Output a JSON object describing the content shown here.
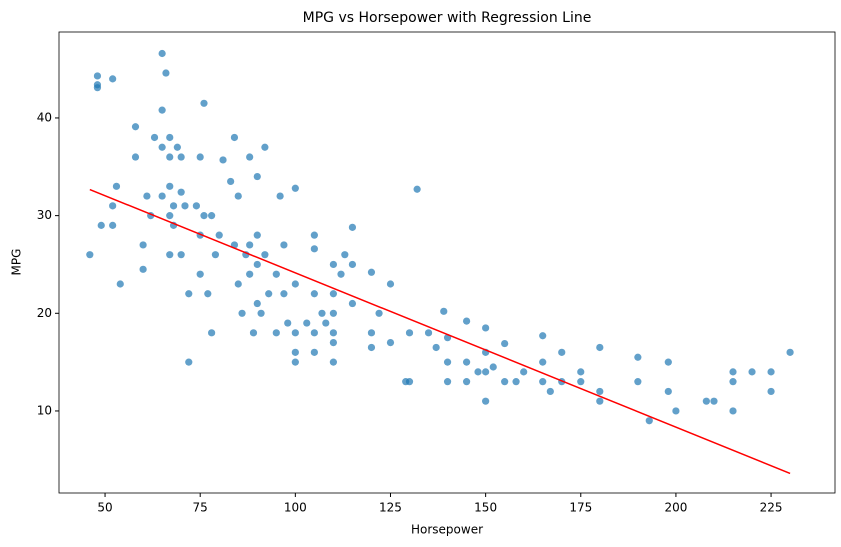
{
  "chart_data": {
    "type": "scatter",
    "title": "MPG vs Horsepower with Regression Line",
    "x_label": "Horsepower",
    "y_label": "MPG",
    "xlim": [
      37.9,
      241.8
    ],
    "ylim": [
      1.6,
      48.8
    ],
    "xticks": [
      50,
      75,
      100,
      125,
      150,
      175,
      200,
      225
    ],
    "yticks": [
      10,
      20,
      30,
      40
    ],
    "grid": false,
    "series": [
      {
        "type": "scatter",
        "color": "#1f77b4",
        "x": [
          46,
          48,
          48,
          48,
          49,
          52,
          52,
          52,
          53,
          54,
          58,
          58,
          60,
          60,
          61,
          62,
          63,
          65,
          65,
          65,
          65,
          66,
          67,
          67,
          67,
          67,
          67,
          68,
          68,
          69,
          70,
          70,
          70,
          71,
          72,
          72,
          74,
          75,
          75,
          75,
          76,
          76,
          77,
          78,
          78,
          79,
          80,
          81,
          83,
          84,
          84,
          85,
          85,
          86,
          87,
          88,
          88,
          88,
          89,
          90,
          90,
          90,
          90,
          91,
          92,
          92,
          93,
          95,
          95,
          96,
          97,
          97,
          98,
          100,
          100,
          100,
          100,
          100,
          103,
          105,
          105,
          105,
          105,
          105,
          107,
          108,
          110,
          110,
          110,
          110,
          110,
          110,
          112,
          113,
          115,
          115,
          115,
          120,
          120,
          120,
          122,
          125,
          125,
          129,
          130,
          130,
          132,
          135,
          137,
          139,
          140,
          140,
          140,
          145,
          145,
          145,
          148,
          150,
          150,
          150,
          150,
          152,
          155,
          155,
          158,
          160,
          165,
          165,
          165,
          167,
          170,
          170,
          175,
          175,
          180,
          180,
          180,
          190,
          190,
          193,
          198,
          198,
          200,
          208,
          210,
          215,
          215,
          215,
          220,
          225,
          225,
          230
        ],
        "values": [
          26,
          44.3,
          43.1,
          43.4,
          29,
          44,
          31,
          29,
          33,
          23,
          36,
          39.1,
          27,
          24.5,
          32,
          30,
          38,
          46.6,
          40.8,
          37,
          32,
          44.6,
          38,
          36,
          33,
          30,
          26,
          31,
          29,
          37,
          32.4,
          36,
          26,
          31,
          22,
          15,
          31,
          36,
          28,
          24,
          41.5,
          30,
          22,
          30,
          18,
          26,
          28,
          35.7,
          33.5,
          38,
          27,
          32,
          23,
          20,
          26,
          36,
          27,
          24,
          18,
          34,
          28,
          25,
          21,
          20,
          37,
          26,
          22,
          24,
          18,
          32,
          27,
          22,
          19,
          32.8,
          23,
          18,
          16,
          15,
          19,
          28,
          26.6,
          22,
          18,
          16,
          20,
          19,
          25,
          22,
          20,
          18,
          17,
          15,
          24,
          26,
          28.8,
          25,
          21,
          24.2,
          18,
          16.5,
          20,
          23,
          17,
          13,
          18,
          13,
          32.7,
          18,
          16.5,
          20.2,
          17.5,
          15,
          13,
          19.2,
          15,
          13,
          14,
          18.5,
          16,
          14,
          11,
          14.5,
          16.9,
          13,
          13,
          14,
          17.7,
          15,
          13,
          12,
          16,
          13,
          14,
          13,
          16.5,
          12,
          11,
          15.5,
          13,
          9,
          15,
          12,
          10,
          11,
          11,
          14,
          13,
          10,
          14,
          14,
          12,
          16
        ]
      },
      {
        "type": "line",
        "color": "#ff0000",
        "x": [
          46,
          230
        ],
        "values": [
          32.67,
          3.6
        ]
      }
    ]
  }
}
